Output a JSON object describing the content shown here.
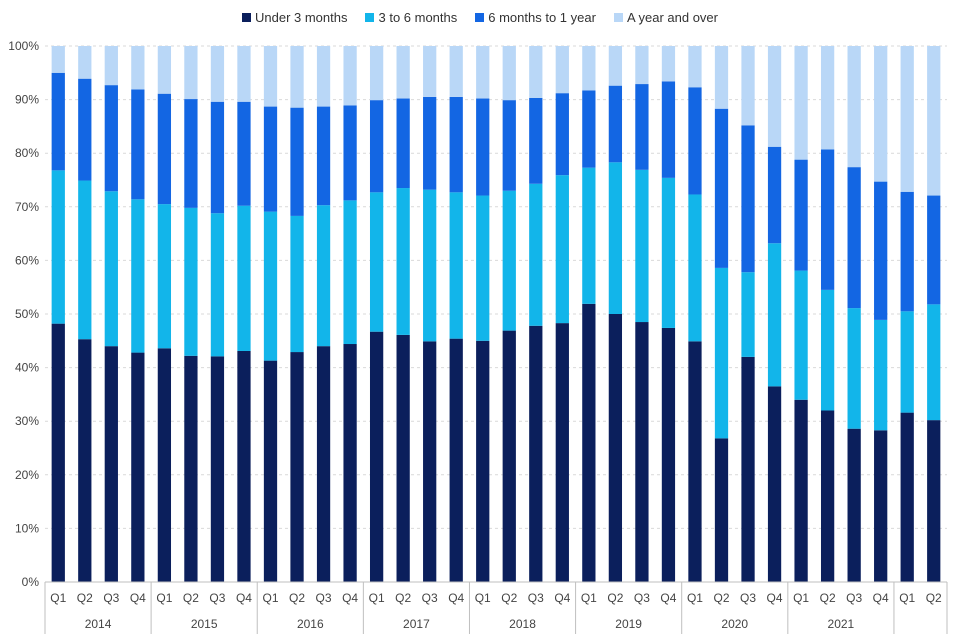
{
  "chart_data": {
    "type": "bar",
    "stacked": true,
    "normalized": true,
    "legend_position": "top",
    "grid": true,
    "ylim": [
      0,
      100
    ],
    "y_ticks": [
      "0%",
      "10%",
      "20%",
      "30%",
      "40%",
      "50%",
      "60%",
      "70%",
      "80%",
      "90%",
      "100%"
    ],
    "categories": [
      "Q1",
      "Q2",
      "Q3",
      "Q4",
      "Q1",
      "Q2",
      "Q3",
      "Q4",
      "Q1",
      "Q2",
      "Q3",
      "Q4",
      "Q1",
      "Q2",
      "Q3",
      "Q4",
      "Q1",
      "Q2",
      "Q3",
      "Q4",
      "Q1",
      "Q2",
      "Q3",
      "Q4",
      "Q1",
      "Q2",
      "Q3",
      "Q4",
      "Q1",
      "Q2",
      "Q3",
      "Q4",
      "Q1",
      "Q2"
    ],
    "years": [
      {
        "label": "2014",
        "count": 4
      },
      {
        "label": "2015",
        "count": 4
      },
      {
        "label": "2016",
        "count": 4
      },
      {
        "label": "2017",
        "count": 4
      },
      {
        "label": "2018",
        "count": 4
      },
      {
        "label": "2019",
        "count": 4
      },
      {
        "label": "2020",
        "count": 4
      },
      {
        "label": "2021",
        "count": 4
      },
      {
        "label": "",
        "count": 2
      }
    ],
    "series": [
      {
        "name": "Under 3 months",
        "color": "#0b1f5c",
        "values": [
          48.2,
          45.3,
          44.0,
          42.8,
          43.6,
          42.2,
          42.1,
          43.1,
          41.3,
          42.9,
          44.0,
          44.4,
          46.7,
          46.1,
          44.9,
          45.4,
          45.0,
          46.9,
          47.8,
          48.3,
          51.9,
          50.0,
          48.5,
          47.4,
          44.9,
          26.8,
          42.0,
          36.5,
          34.0,
          32.0,
          28.6,
          28.3,
          31.6,
          30.2
        ]
      },
      {
        "name": "3 to 6 months",
        "color": "#12b5ea",
        "values": [
          28.6,
          29.6,
          28.9,
          28.6,
          26.9,
          27.6,
          26.7,
          27.1,
          27.8,
          25.4,
          26.3,
          26.8,
          26.0,
          27.4,
          28.3,
          27.3,
          27.1,
          26.1,
          26.5,
          27.6,
          25.4,
          28.3,
          28.4,
          28.0,
          27.4,
          31.8,
          15.8,
          26.7,
          24.1,
          22.5,
          22.5,
          20.6,
          18.9,
          21.6
        ]
      },
      {
        "name": "6 months to 1 year",
        "color": "#1366e3",
        "values": [
          18.2,
          19.0,
          19.8,
          20.5,
          20.6,
          20.3,
          20.8,
          19.4,
          19.6,
          20.2,
          18.4,
          17.7,
          17.2,
          16.7,
          17.3,
          17.8,
          18.1,
          16.9,
          16.0,
          15.3,
          14.4,
          14.3,
          16.0,
          18.0,
          20.0,
          29.7,
          27.4,
          18.0,
          20.7,
          26.2,
          26.3,
          25.8,
          22.3,
          20.3
        ]
      },
      {
        "name": "A year and over",
        "color": "#b9d7f7",
        "values": [
          5.0,
          6.1,
          7.3,
          8.1,
          8.9,
          9.9,
          10.4,
          10.4,
          11.3,
          11.5,
          11.3,
          11.1,
          10.1,
          9.8,
          9.5,
          9.5,
          9.8,
          10.1,
          9.7,
          8.8,
          8.3,
          7.4,
          7.1,
          6.6,
          7.7,
          11.7,
          14.8,
          18.8,
          21.2,
          19.3,
          22.6,
          25.3,
          27.2,
          27.9
        ]
      }
    ]
  }
}
